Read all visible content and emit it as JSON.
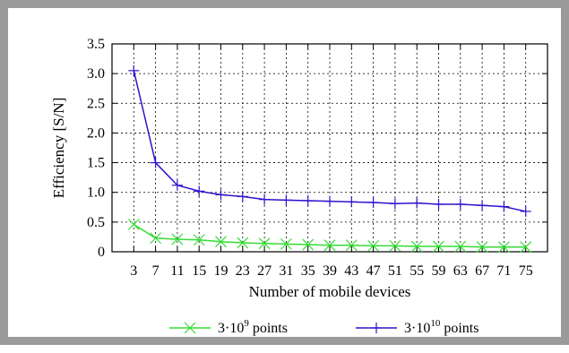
{
  "chart_data": {
    "type": "line",
    "title": "",
    "xlabel": "Number of mobile devices",
    "ylabel": "Efficiency [S/N]",
    "x": [
      3,
      7,
      11,
      15,
      19,
      23,
      27,
      31,
      35,
      39,
      43,
      47,
      51,
      55,
      59,
      63,
      67,
      71,
      75
    ],
    "xticks": [
      "3",
      "7",
      "11",
      "15",
      "19",
      "23",
      "27",
      "31",
      "35",
      "39",
      "43",
      "47",
      "51",
      "55",
      "59",
      "63",
      "67",
      "71",
      "75"
    ],
    "ylim": [
      0,
      3.5
    ],
    "yticks": [
      "0",
      "0.5",
      "1.0",
      "1.5",
      "2.0",
      "2.5",
      "3.0",
      "3.5"
    ],
    "grid": true,
    "legend_position": "bottom",
    "series": [
      {
        "name": "3·10^9 points",
        "legend_base": "3·10",
        "legend_exp": "9",
        "legend_suffix": " points",
        "color": "#33dd33",
        "marker": "x",
        "values": [
          0.46,
          0.23,
          0.21,
          0.2,
          0.17,
          0.15,
          0.14,
          0.13,
          0.12,
          0.11,
          0.11,
          0.1,
          0.1,
          0.09,
          0.09,
          0.09,
          0.08,
          0.08,
          0.08
        ]
      },
      {
        "name": "3·10^10 points",
        "legend_base": "3·10",
        "legend_exp": "10",
        "legend_suffix": " points",
        "color": "#3311cc",
        "marker": "+",
        "values": [
          3.05,
          1.5,
          1.12,
          1.02,
          0.96,
          0.93,
          0.88,
          0.87,
          0.86,
          0.85,
          0.84,
          0.83,
          0.81,
          0.82,
          0.8,
          0.8,
          0.78,
          0.76,
          0.68
        ]
      }
    ]
  }
}
